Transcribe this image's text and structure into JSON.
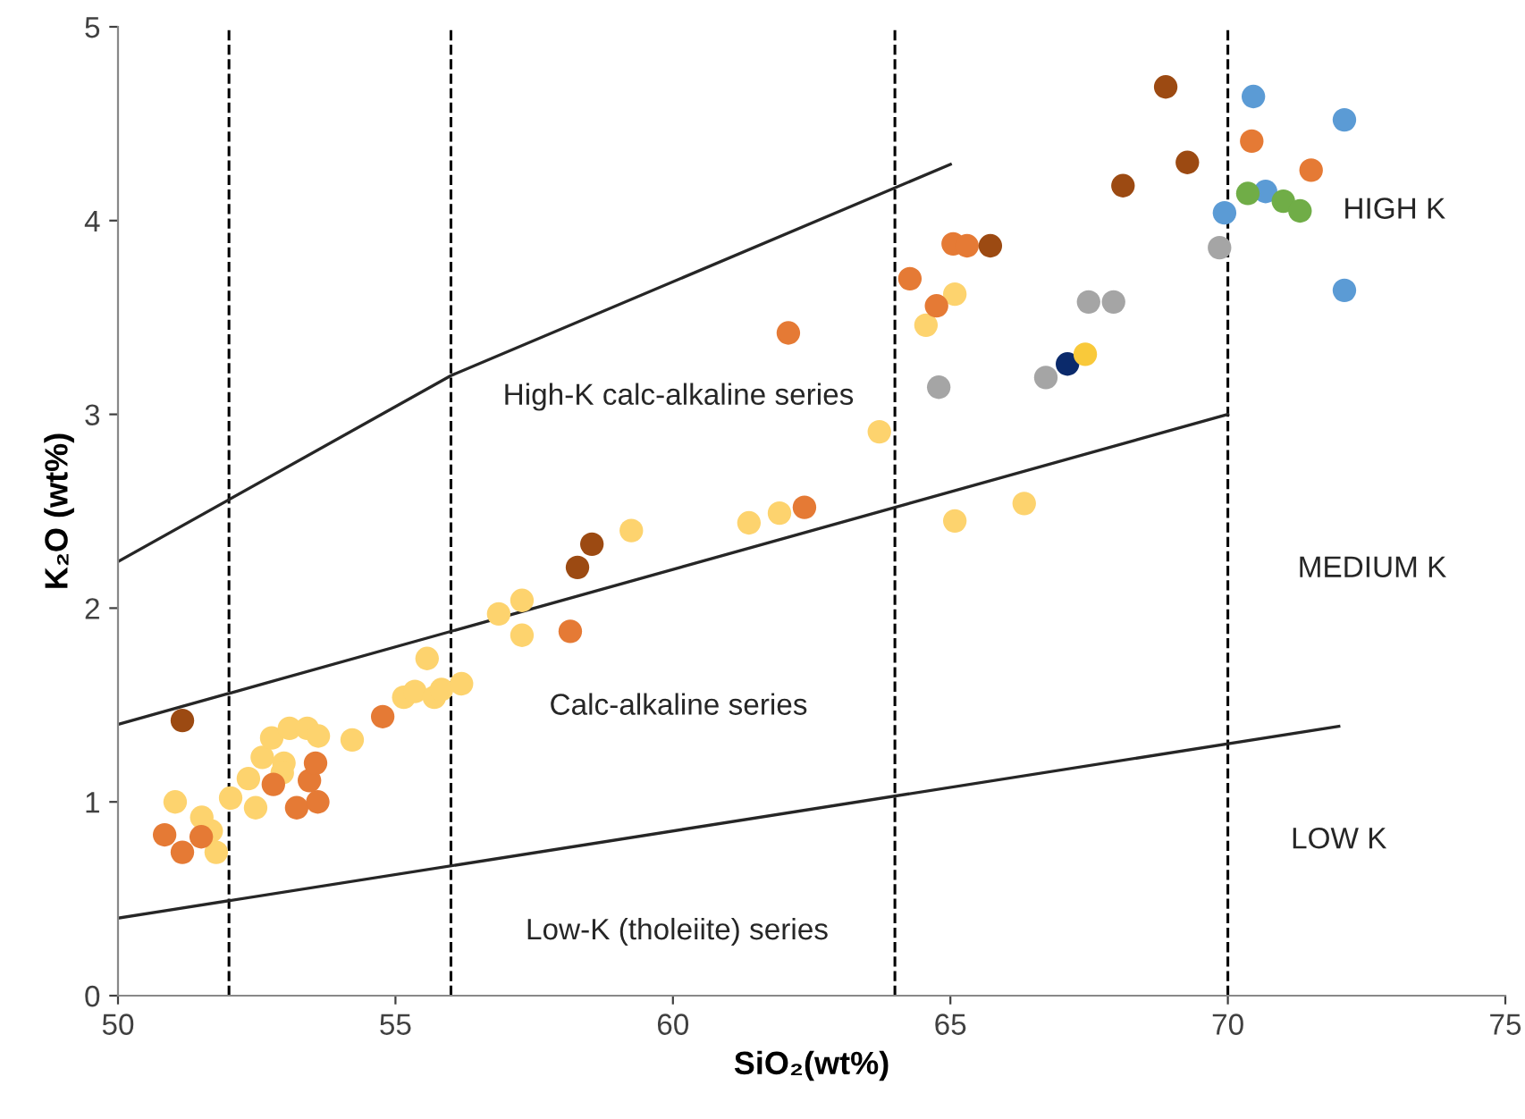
{
  "chart_data": {
    "type": "scatter",
    "xlabel": "SiO₂(wt%)",
    "ylabel": "K₂O (wt%)",
    "xlim": [
      50,
      75
    ],
    "ylim": [
      0,
      5
    ],
    "xticks": [
      50,
      55,
      60,
      65,
      70,
      75
    ],
    "yticks": [
      0,
      1,
      2,
      3,
      4,
      5
    ],
    "grid": false,
    "legend": false,
    "marker": "circle",
    "series": [
      {
        "type": "line",
        "color": "#262626",
        "marker": "none",
        "x": [
          50,
          56,
          65
        ],
        "values": [
          2.24,
          3.2,
          4.29
        ]
      },
      {
        "type": "line",
        "color": "#262626",
        "marker": "none",
        "x": [
          50,
          70
        ],
        "values": [
          1.4,
          3.0
        ]
      },
      {
        "type": "line",
        "color": "#262626",
        "marker": "none",
        "x": [
          50,
          72
        ],
        "values": [
          0.4,
          1.39
        ]
      },
      {
        "color": "#fdd36e",
        "x": [
          51.03,
          51.51,
          51.68,
          51.77,
          52.03,
          52.35,
          52.48,
          52.6,
          52.77,
          52.99,
          52.96,
          53.09,
          53.41,
          53.61,
          54.22,
          55.15,
          55.35,
          55.57,
          55.7,
          55.83,
          56.19,
          56.86,
          57.28,
          57.28,
          59.25,
          61.37,
          61.92,
          63.72,
          65.08,
          66.33,
          65.08,
          64.56
        ],
        "values": [
          1.0,
          0.92,
          0.85,
          0.74,
          1.02,
          1.12,
          0.97,
          1.23,
          1.33,
          1.2,
          1.15,
          1.38,
          1.38,
          1.34,
          1.32,
          1.54,
          1.57,
          1.74,
          1.54,
          1.58,
          1.61,
          1.97,
          2.04,
          1.86,
          2.4,
          2.44,
          2.49,
          2.91,
          2.45,
          2.54,
          3.62,
          3.46
        ]
      },
      {
        "color": "#e57a35",
        "x": [
          50.84,
          51.16,
          51.5,
          52.8,
          53.22,
          53.6,
          53.45,
          53.56,
          54.77,
          58.15,
          62.08,
          62.37,
          64.27,
          65.05,
          65.3,
          64.75,
          70.43,
          71.5
        ],
        "values": [
          0.83,
          0.74,
          0.82,
          1.09,
          0.97,
          1.0,
          1.11,
          1.2,
          1.44,
          1.88,
          3.42,
          2.52,
          3.7,
          3.88,
          3.87,
          3.56,
          4.41,
          4.26
        ]
      },
      {
        "color": "#9c4a12",
        "x": [
          51.16,
          58.28,
          58.54,
          65.72,
          68.11,
          68.88,
          69.27
        ],
        "values": [
          1.42,
          2.21,
          2.33,
          3.87,
          4.18,
          4.69,
          4.3
        ]
      },
      {
        "color": "#a5a5a5",
        "x": [
          64.79,
          66.72,
          67.49,
          67.94,
          69.85
        ],
        "values": [
          3.14,
          3.19,
          3.58,
          3.58,
          3.86
        ]
      },
      {
        "color": "#0b2a6b",
        "x": [
          67.11
        ],
        "values": [
          3.26
        ]
      },
      {
        "color": "#f9c93a",
        "x": [
          67.43
        ],
        "values": [
          3.31
        ]
      },
      {
        "color": "#5b9bd5",
        "x": [
          70.46,
          72.1,
          69.94,
          70.68,
          72.1
        ],
        "values": [
          4.64,
          4.52,
          4.04,
          4.15,
          3.64
        ]
      },
      {
        "color": "#70ad47",
        "x": [
          70.36,
          71.0,
          71.3
        ],
        "values": [
          4.14,
          4.1,
          4.05
        ]
      }
    ],
    "ref_lines": [
      {
        "axis": "x",
        "value": 52,
        "color": "#000000",
        "line_style": "dashed"
      },
      {
        "axis": "x",
        "value": 56,
        "color": "#000000",
        "line_style": "dashed"
      },
      {
        "axis": "x",
        "value": 64,
        "color": "#000000",
        "line_style": "dashed"
      },
      {
        "axis": "x",
        "value": 70,
        "color": "#000000",
        "line_style": "dashed"
      }
    ],
    "annotations": [
      "High-K calc-alkaline series",
      "Calc-alkaline series",
      "Low-K (tholeiite) series",
      "HIGH K",
      "MEDIUM K",
      "LOW K"
    ]
  }
}
